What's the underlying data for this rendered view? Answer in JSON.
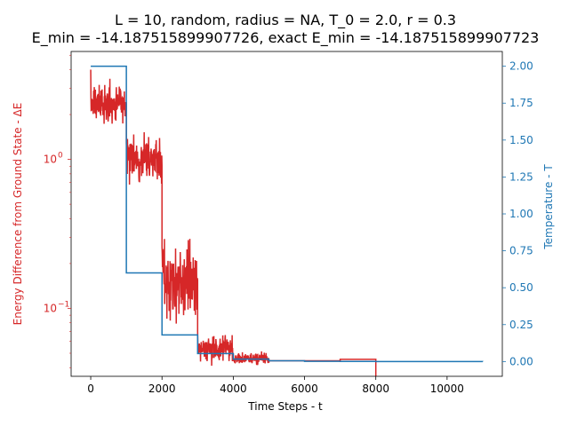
{
  "chart_data": {
    "type": "line",
    "title_line1": "L = 10, random, radius = NA, T_0 = 2.0, r = 0.3",
    "title_line2": "E_min = -14.187515899907726, exact E_min = -14.187515899907723",
    "xlabel": "Time Steps - t",
    "ylabel_left": "Energy Difference from Ground State - ΔE",
    "ylabel_right": "Temperature - T",
    "left_color": "#d62728",
    "right_color": "#1f77b4",
    "xlim": [
      -550,
      11550
    ],
    "left_ylim_log": [
      0.035,
      5.3
    ],
    "right_ylim": [
      -0.1,
      2.1
    ],
    "x_ticks": [
      {
        "value": 0,
        "label": "0"
      },
      {
        "value": 2000,
        "label": "2000"
      },
      {
        "value": 4000,
        "label": "4000"
      },
      {
        "value": 6000,
        "label": "6000"
      },
      {
        "value": 8000,
        "label": "8000"
      },
      {
        "value": 10000,
        "label": "10000"
      }
    ],
    "left_major_ticks": [
      {
        "value": 1,
        "label": "10",
        "sup": "0"
      },
      {
        "value": 0.1,
        "label": "10",
        "sup": "−1"
      }
    ],
    "left_minor_ticks": [
      0.04,
      0.05,
      0.06,
      0.07,
      0.08,
      0.09,
      0.2,
      0.3,
      0.4,
      0.5,
      0.6,
      0.7,
      0.8,
      0.9,
      2,
      3,
      4,
      5
    ],
    "right_ticks": [
      {
        "value": 0.0,
        "label": "0.00"
      },
      {
        "value": 0.25,
        "label": "0.25"
      },
      {
        "value": 0.5,
        "label": "0.50"
      },
      {
        "value": 0.75,
        "label": "0.75"
      },
      {
        "value": 1.0,
        "label": "1.00"
      },
      {
        "value": 1.25,
        "label": "1.25"
      },
      {
        "value": 1.5,
        "label": "1.50"
      },
      {
        "value": 1.75,
        "label": "1.75"
      },
      {
        "value": 2.0,
        "label": "2.00"
      }
    ],
    "series": [
      {
        "axis": "left",
        "segments": [
          {
            "x_start": 0,
            "x_end": 1000,
            "start_value": 4.0,
            "center": 2.35,
            "spread": 0.08,
            "seed": 11
          },
          {
            "x_start": 1000,
            "x_end": 2000,
            "start_value": 1.3,
            "center": 1.02,
            "spread": 0.1,
            "seed": 23
          },
          {
            "x_start": 2000,
            "x_end": 3000,
            "start_value": 0.26,
            "center": 0.15,
            "spread": 0.16,
            "seed": 37
          },
          {
            "x_start": 3000,
            "x_end": 4000,
            "start_value": 0.07,
            "center": 0.053,
            "spread": 0.06,
            "seed": 41
          },
          {
            "x_start": 4000,
            "x_end": 5000,
            "start_value": 0.05,
            "center": 0.046,
            "spread": 0.025,
            "seed": 53
          }
        ],
        "flat_segments": [
          {
            "x_start": 5000,
            "x_end": 7000,
            "value": 0.0445
          },
          {
            "x_start": 7000,
            "x_end": 8000,
            "value": 0.0455
          }
        ],
        "drop_at": 8000
      },
      {
        "axis": "right",
        "steps": [
          {
            "x": 0,
            "y": 2.0
          },
          {
            "x": 1000,
            "y": 0.6
          },
          {
            "x": 2000,
            "y": 0.18
          },
          {
            "x": 3000,
            "y": 0.054
          },
          {
            "x": 4000,
            "y": 0.0162
          },
          {
            "x": 5000,
            "y": 0.00486
          },
          {
            "x": 6000,
            "y": 0.00146
          },
          {
            "x": 7000,
            "y": 0.00044
          },
          {
            "x": 8000,
            "y": 0.00013
          },
          {
            "x": 9000,
            "y": 4e-05
          },
          {
            "x": 10000,
            "y": 1e-05
          },
          {
            "x": 11000,
            "y": 0.0
          }
        ]
      }
    ]
  }
}
